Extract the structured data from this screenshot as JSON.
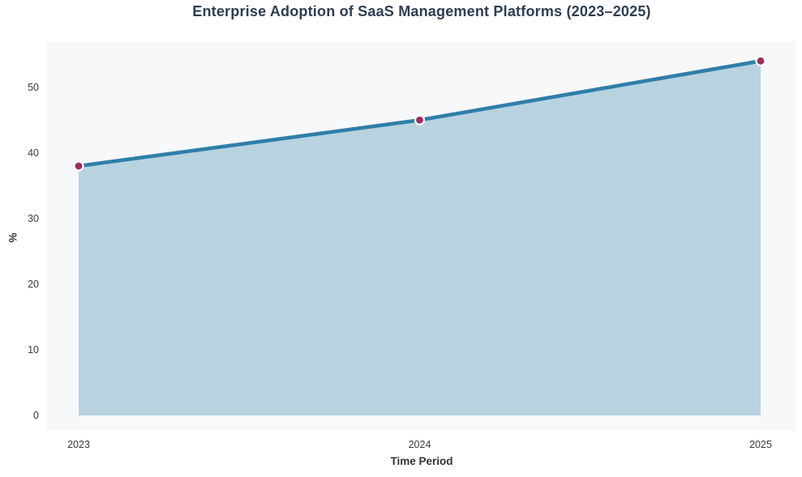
{
  "chart_data": {
    "type": "area",
    "title": "Enterprise Adoption of SaaS Management Platforms (2023–2025)",
    "xlabel": "Time Period",
    "ylabel": "%",
    "categories": [
      "2023",
      "2024",
      "2025"
    ],
    "values": [
      38,
      45,
      54
    ],
    "yticks": [
      0,
      10,
      20,
      30,
      40,
      50
    ],
    "ylim": [
      0,
      57
    ],
    "grid": false,
    "legend": false,
    "marker": "circle",
    "style": {
      "line_color": "#2e7fa8",
      "fill_color": "#b8d2e0",
      "marker_color": "#9c2d5c",
      "marker_edge_color": "#ffffff",
      "plot_background": "#f7f8fa",
      "page_background": "#ffffff",
      "title_color": "#2e3e52",
      "axis_title_color": "#333333",
      "tick_color": "#3a3a3a"
    }
  }
}
